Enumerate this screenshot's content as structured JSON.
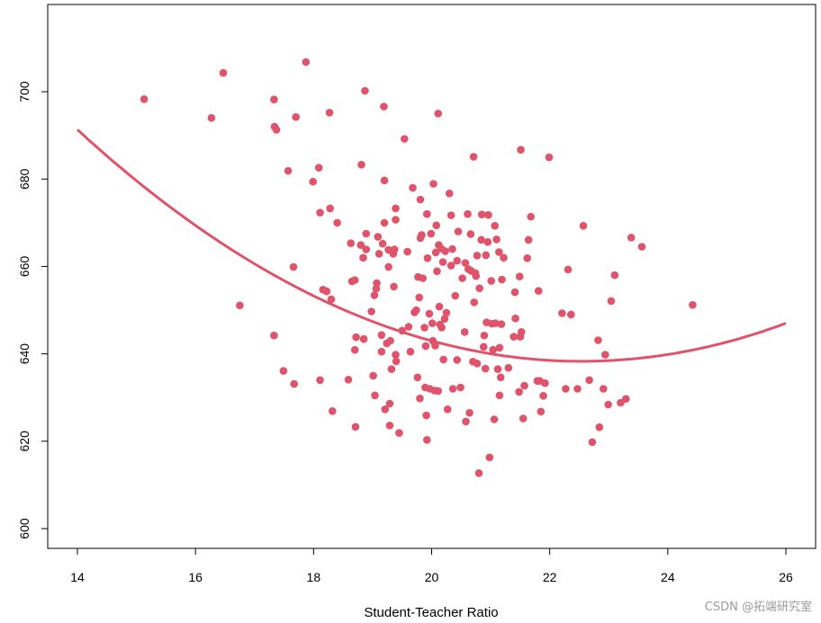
{
  "chart_data": {
    "type": "scatter",
    "xlabel": "Student-Teacher Ratio",
    "ylabel": "",
    "title": "",
    "xlim": [
      14,
      26
    ],
    "ylim": [
      600,
      717
    ],
    "xticks": [
      "14",
      "16",
      "18",
      "20",
      "22",
      "24",
      "26"
    ],
    "yticks": [
      "600",
      "620",
      "640",
      "660",
      "680",
      "700"
    ],
    "point_color": "#df536b",
    "line_color": "#df536b",
    "points": [
      [
        15.13,
        698.3
      ],
      [
        16.27,
        694.0
      ],
      [
        16.47,
        704.3
      ],
      [
        16.75,
        651.1
      ],
      [
        17.33,
        698.2
      ],
      [
        17.34,
        692.0
      ],
      [
        17.37,
        691.3
      ],
      [
        17.33,
        644.2
      ],
      [
        17.49,
        636.1
      ],
      [
        17.57,
        681.9
      ],
      [
        17.66,
        659.9
      ],
      [
        17.67,
        633.1
      ],
      [
        17.7,
        694.2
      ],
      [
        17.87,
        706.8
      ],
      [
        17.99,
        679.4
      ],
      [
        18.09,
        682.6
      ],
      [
        18.11,
        672.3
      ],
      [
        18.11,
        634.0
      ],
      [
        18.16,
        654.7
      ],
      [
        18.22,
        654.3
      ],
      [
        18.27,
        695.2
      ],
      [
        18.28,
        673.3
      ],
      [
        18.3,
        652.5
      ],
      [
        18.32,
        626.9
      ],
      [
        18.4,
        670.0
      ],
      [
        18.59,
        634.1
      ],
      [
        18.63,
        665.3
      ],
      [
        18.65,
        656.6
      ],
      [
        18.7,
        656.9
      ],
      [
        18.7,
        640.9
      ],
      [
        18.71,
        623.3
      ],
      [
        18.72,
        643.8
      ],
      [
        18.8,
        664.9
      ],
      [
        18.81,
        683.3
      ],
      [
        18.84,
        662.0
      ],
      [
        18.85,
        643.4
      ],
      [
        18.87,
        700.2
      ],
      [
        18.89,
        663.9
      ],
      [
        18.89,
        667.5
      ],
      [
        18.98,
        649.7
      ],
      [
        19.01,
        635.0
      ],
      [
        19.03,
        653.4
      ],
      [
        19.04,
        630.5
      ],
      [
        19.06,
        654.9
      ],
      [
        19.07,
        656.2
      ],
      [
        19.09,
        666.8
      ],
      [
        19.11,
        662.9
      ],
      [
        19.15,
        644.3
      ],
      [
        19.15,
        640.5
      ],
      [
        19.17,
        665.2
      ],
      [
        19.19,
        696.6
      ],
      [
        19.2,
        670.0
      ],
      [
        19.2,
        679.7
      ],
      [
        19.21,
        627.3
      ],
      [
        19.24,
        642.4
      ],
      [
        19.27,
        659.9
      ],
      [
        19.27,
        663.8
      ],
      [
        19.29,
        628.6
      ],
      [
        19.29,
        623.6
      ],
      [
        19.3,
        643.0
      ],
      [
        19.32,
        636.5
      ],
      [
        19.35,
        662.9
      ],
      [
        19.36,
        655.4
      ],
      [
        19.37,
        663.9
      ],
      [
        19.39,
        673.3
      ],
      [
        19.39,
        670.7
      ],
      [
        19.39,
        639.8
      ],
      [
        19.4,
        638.3
      ],
      [
        19.45,
        621.9
      ],
      [
        19.5,
        645.3
      ],
      [
        19.54,
        689.2
      ],
      [
        19.59,
        663.4
      ],
      [
        19.61,
        646.2
      ],
      [
        19.64,
        640.5
      ],
      [
        19.68,
        678.0
      ],
      [
        19.71,
        649.5
      ],
      [
        19.74,
        650.0
      ],
      [
        19.76,
        634.6
      ],
      [
        19.77,
        657.6
      ],
      [
        19.79,
        652.9
      ],
      [
        19.8,
        629.8
      ],
      [
        19.81,
        666.5
      ],
      [
        19.81,
        675.3
      ],
      [
        19.83,
        667.2
      ],
      [
        19.85,
        657.3
      ],
      [
        19.88,
        646.0
      ],
      [
        19.89,
        632.3
      ],
      [
        19.9,
        641.8
      ],
      [
        19.91,
        625.9
      ],
      [
        19.92,
        620.3
      ],
      [
        19.92,
        672.0
      ],
      [
        19.93,
        661.9
      ],
      [
        19.96,
        649.2
      ],
      [
        19.97,
        632.0
      ],
      [
        19.99,
        667.5
      ],
      [
        20.01,
        647.0
      ],
      [
        20.02,
        643.0
      ],
      [
        20.03,
        678.9
      ],
      [
        20.05,
        631.6
      ],
      [
        20.06,
        641.9
      ],
      [
        20.07,
        663.2
      ],
      [
        20.08,
        669.4
      ],
      [
        20.09,
        658.9
      ],
      [
        20.11,
        631.5
      ],
      [
        20.11,
        695.0
      ],
      [
        20.12,
        664.9
      ],
      [
        20.13,
        650.8
      ],
      [
        20.14,
        646.7
      ],
      [
        20.16,
        664.1
      ],
      [
        20.17,
        646.0
      ],
      [
        20.19,
        661.0
      ],
      [
        20.2,
        638.7
      ],
      [
        20.22,
        648.0
      ],
      [
        20.23,
        663.5
      ],
      [
        20.25,
        649.4
      ],
      [
        20.27,
        627.3
      ],
      [
        20.3,
        676.7
      ],
      [
        20.33,
        671.7
      ],
      [
        20.33,
        660.2
      ],
      [
        20.35,
        664.0
      ],
      [
        20.36,
        632.0
      ],
      [
        20.4,
        653.3
      ],
      [
        20.43,
        661.3
      ],
      [
        20.43,
        638.6
      ],
      [
        20.45,
        668.0
      ],
      [
        20.49,
        632.3
      ],
      [
        20.52,
        657.3
      ],
      [
        20.56,
        645.0
      ],
      [
        20.57,
        660.8
      ],
      [
        20.58,
        624.5
      ],
      [
        20.61,
        672.0
      ],
      [
        20.62,
        659.4
      ],
      [
        20.64,
        626.5
      ],
      [
        20.66,
        667.4
      ],
      [
        20.67,
        659.0
      ],
      [
        20.7,
        638.2
      ],
      [
        20.71,
        685.1
      ],
      [
        20.72,
        651.8
      ],
      [
        20.74,
        658.5
      ],
      [
        20.75,
        657.8
      ],
      [
        20.77,
        637.8
      ],
      [
        20.77,
        662.5
      ],
      [
        20.8,
        612.7
      ],
      [
        20.81,
        655.0
      ],
      [
        20.84,
        666.1
      ],
      [
        20.85,
        671.9
      ],
      [
        20.88,
        641.6
      ],
      [
        20.89,
        644.2
      ],
      [
        20.91,
        636.6
      ],
      [
        20.92,
        662.6
      ],
      [
        20.93,
        647.2
      ],
      [
        20.95,
        665.6
      ],
      [
        20.96,
        671.8
      ],
      [
        20.98,
        616.3
      ],
      [
        21.01,
        656.7
      ],
      [
        21.02,
        646.9
      ],
      [
        21.04,
        640.9
      ],
      [
        21.06,
        625.0
      ],
      [
        21.07,
        669.3
      ],
      [
        21.08,
        647.0
      ],
      [
        21.1,
        666.2
      ],
      [
        21.12,
        636.5
      ],
      [
        21.14,
        663.3
      ],
      [
        21.15,
        641.4
      ],
      [
        21.15,
        630.5
      ],
      [
        21.17,
        634.6
      ],
      [
        21.18,
        646.8
      ],
      [
        21.19,
        657.0
      ],
      [
        21.22,
        662.0
      ],
      [
        21.3,
        636.8
      ],
      [
        21.39,
        643.9
      ],
      [
        21.41,
        654.1
      ],
      [
        21.42,
        648.1
      ],
      [
        21.48,
        631.3
      ],
      [
        21.49,
        657.7
      ],
      [
        21.5,
        643.9
      ],
      [
        21.51,
        686.7
      ],
      [
        21.52,
        645.0
      ],
      [
        21.55,
        625.2
      ],
      [
        21.57,
        632.7
      ],
      [
        21.62,
        661.9
      ],
      [
        21.64,
        666.1
      ],
      [
        21.68,
        671.4
      ],
      [
        21.79,
        633.8
      ],
      [
        21.81,
        654.4
      ],
      [
        21.83,
        633.8
      ],
      [
        21.85,
        626.8
      ],
      [
        21.89,
        630.4
      ],
      [
        21.92,
        633.3
      ],
      [
        21.99,
        685.0
      ],
      [
        22.21,
        649.3
      ],
      [
        22.27,
        632.0
      ],
      [
        22.31,
        659.3
      ],
      [
        22.36,
        649.0
      ],
      [
        22.47,
        632.0
      ],
      [
        22.57,
        669.3
      ],
      [
        22.67,
        634.0
      ],
      [
        22.72,
        619.8
      ],
      [
        22.82,
        643.1
      ],
      [
        22.84,
        623.2
      ],
      [
        22.91,
        632.0
      ],
      [
        22.94,
        639.8
      ],
      [
        22.99,
        628.4
      ],
      [
        23.04,
        652.1
      ],
      [
        23.1,
        658.0
      ],
      [
        23.2,
        628.8
      ],
      [
        23.29,
        629.7
      ],
      [
        23.38,
        666.6
      ],
      [
        23.56,
        664.5
      ],
      [
        24.42,
        651.2
      ]
    ],
    "fit": {
      "type": "quadratic",
      "x_range": [
        14,
        26
      ],
      "coefficients": [
        1007.7,
        -32.78,
        0.7272
      ]
    }
  },
  "watermark": "CSDN @拓端研究室"
}
